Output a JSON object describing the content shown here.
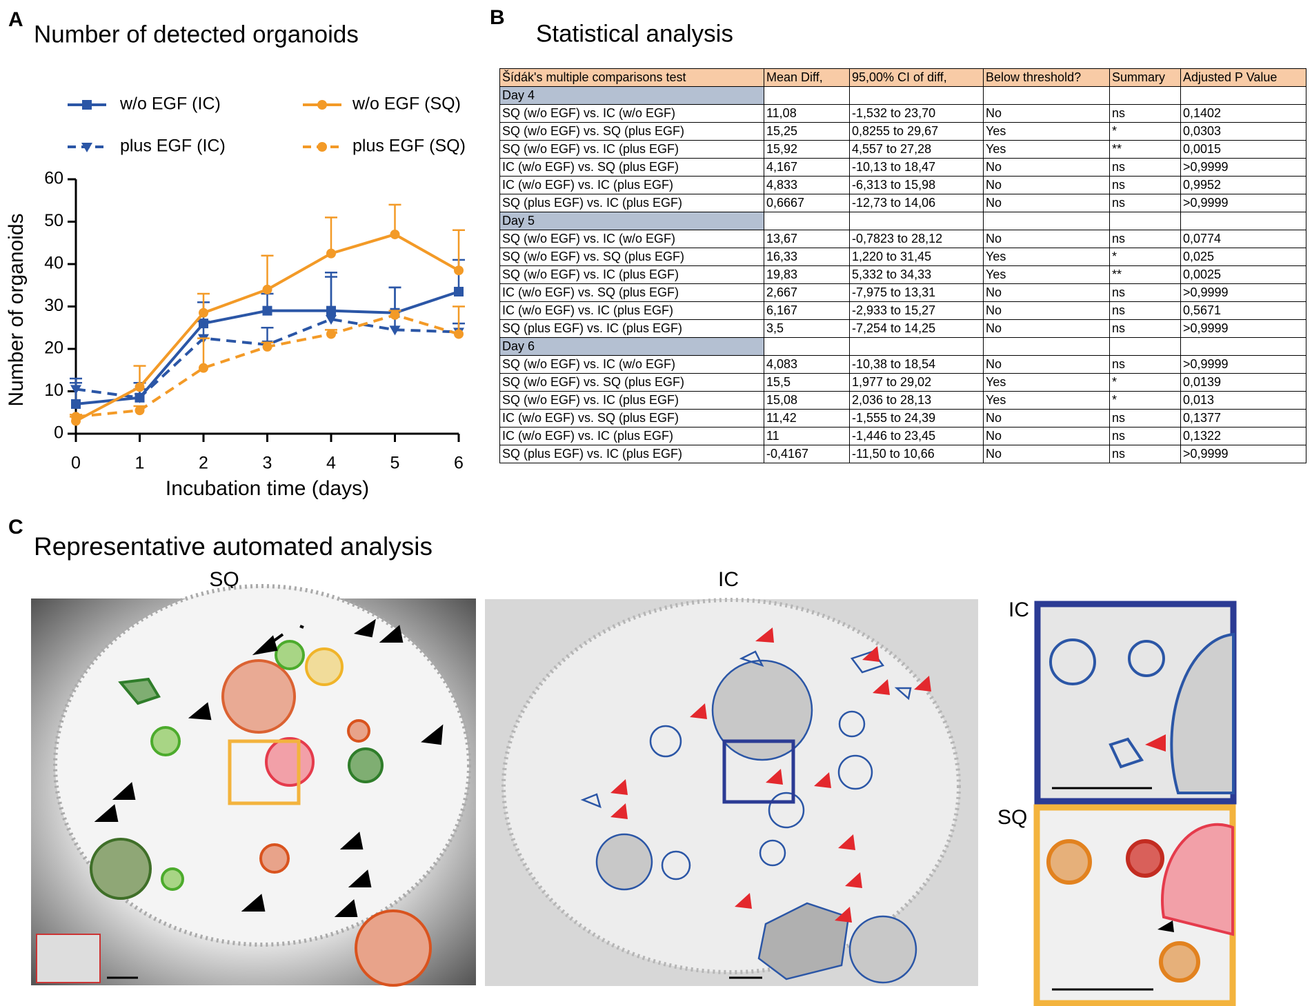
{
  "panel_labels": [
    "A",
    "B",
    "C"
  ],
  "chart_data": {
    "type": "line",
    "title": "Number of detected organoids",
    "xlabel": "Incubation time (days)",
    "ylabel": "Number of organoids",
    "x": [
      0,
      1,
      2,
      3,
      4,
      5,
      6
    ],
    "xlim": [
      0,
      6
    ],
    "xticks": [
      0,
      1,
      2,
      3,
      4,
      5,
      6
    ],
    "ylim": [
      0,
      60
    ],
    "yticks": [
      0,
      10,
      20,
      30,
      40,
      50,
      60
    ],
    "series": [
      {
        "name": "w/o EGF (IC)",
        "color": "#2b56a6",
        "line_style": "solid",
        "marker": "square",
        "values": [
          7,
          8.5,
          26,
          29,
          29,
          28.5,
          33.5
        ],
        "errors": [
          5,
          3.5,
          5,
          4,
          8,
          6,
          7.5
        ]
      },
      {
        "name": "plus EGF (IC)",
        "color": "#2b56a6",
        "line_style": "dashed",
        "marker": "triangle",
        "values": [
          10.5,
          8.5,
          22.5,
          21,
          27,
          24.5,
          24
        ],
        "errors": [
          2.5,
          2,
          4,
          4,
          11,
          10,
          2
        ]
      },
      {
        "name": "w/o EGF (SQ)",
        "color": "#f39a27",
        "line_style": "solid",
        "marker": "circle",
        "values": [
          3,
          11,
          28.5,
          34,
          42.5,
          47,
          38.5
        ],
        "errors": [
          1,
          5,
          4.5,
          8,
          8.5,
          7,
          9.5
        ]
      },
      {
        "name": "plus EGF (SQ)",
        "color": "#f39a27",
        "line_style": "dashed",
        "marker": "circle",
        "values": [
          4,
          5.5,
          15.5,
          20.5,
          23.5,
          28,
          23.5
        ],
        "errors": [
          0.5,
          1,
          7,
          1,
          1,
          1,
          6.5
        ]
      }
    ]
  },
  "table": {
    "title": "Statistical analysis",
    "header": [
      "Šídák's multiple comparisons test",
      "Mean Diff,",
      "95,00% CI of diff,",
      "Below threshold?",
      "Summary",
      "Adjusted P Value"
    ],
    "groups": [
      {
        "label": "Day 4",
        "rows": [
          [
            "SQ (w/o EGF) vs. IC (w/o EGF)",
            "11,08",
            "-1,532 to 23,70",
            "No",
            "ns",
            "0,1402"
          ],
          [
            "SQ (w/o EGF) vs. SQ (plus EGF)",
            "15,25",
            "0,8255 to 29,67",
            "Yes",
            "*",
            "0,0303"
          ],
          [
            "SQ (w/o EGF) vs. IC (plus EGF)",
            "15,92",
            "4,557 to 27,28",
            "Yes",
            "**",
            "0,0015"
          ],
          [
            "IC (w/o EGF) vs. SQ (plus EGF)",
            "4,167",
            "-10,13 to 18,47",
            "No",
            "ns",
            ">0,9999"
          ],
          [
            "IC (w/o EGF) vs. IC (plus EGF)",
            "4,833",
            "-6,313 to 15,98",
            "No",
            "ns",
            "0,9952"
          ],
          [
            "SQ (plus EGF) vs. IC (plus EGF)",
            "0,6667",
            "-12,73 to 14,06",
            "No",
            "ns",
            ">0,9999"
          ]
        ]
      },
      {
        "label": "Day 5",
        "rows": [
          [
            "SQ (w/o EGF) vs. IC (w/o EGF)",
            "13,67",
            "-0,7823 to 28,12",
            "No",
            "ns",
            "0,0774"
          ],
          [
            "SQ (w/o EGF) vs. SQ (plus EGF)",
            "16,33",
            "1,220 to 31,45",
            "Yes",
            "*",
            "0,025"
          ],
          [
            "SQ (w/o EGF) vs. IC (plus EGF)",
            "19,83",
            "5,332 to 34,33",
            "Yes",
            "**",
            "0,0025"
          ],
          [
            "IC (w/o EGF) vs. SQ (plus EGF)",
            "2,667",
            "-7,975 to 13,31",
            "No",
            "ns",
            ">0,9999"
          ],
          [
            "IC (w/o EGF) vs. IC (plus EGF)",
            "6,167",
            "-2,933 to 15,27",
            "No",
            "ns",
            "0,5671"
          ],
          [
            "SQ (plus EGF) vs. IC (plus EGF)",
            "3,5",
            "-7,254 to 14,25",
            "No",
            "ns",
            ">0,9999"
          ]
        ]
      },
      {
        "label": "Day 6",
        "rows": [
          [
            "SQ (w/o EGF) vs. IC (w/o EGF)",
            "4,083",
            "-10,38 to 18,54",
            "No",
            "ns",
            ">0,9999"
          ],
          [
            "SQ (w/o EGF) vs. SQ (plus EGF)",
            "15,5",
            "1,977 to 29,02",
            "Yes",
            "*",
            "0,0139"
          ],
          [
            "SQ (w/o EGF) vs. IC (plus EGF)",
            "15,08",
            "2,036 to 28,13",
            "Yes",
            "*",
            "0,013"
          ],
          [
            "IC (w/o EGF) vs. SQ (plus EGF)",
            "11,42",
            "-1,555 to 24,39",
            "No",
            "ns",
            "0,1377"
          ],
          [
            "IC (w/o EGF) vs. IC (plus EGF)",
            "11",
            "-1,446 to 23,45",
            "No",
            "ns",
            "0,1322"
          ],
          [
            "SQ (plus EGF) vs. IC (plus EGF)",
            "-0,4167",
            "-11,50 to 10,66",
            "No",
            "ns",
            ">0,9999"
          ]
        ]
      }
    ]
  },
  "panel_c": {
    "title": "Representative automated analysis",
    "image_labels": [
      "SQ",
      "IC"
    ],
    "inset_labels": [
      "IC",
      "SQ"
    ]
  }
}
